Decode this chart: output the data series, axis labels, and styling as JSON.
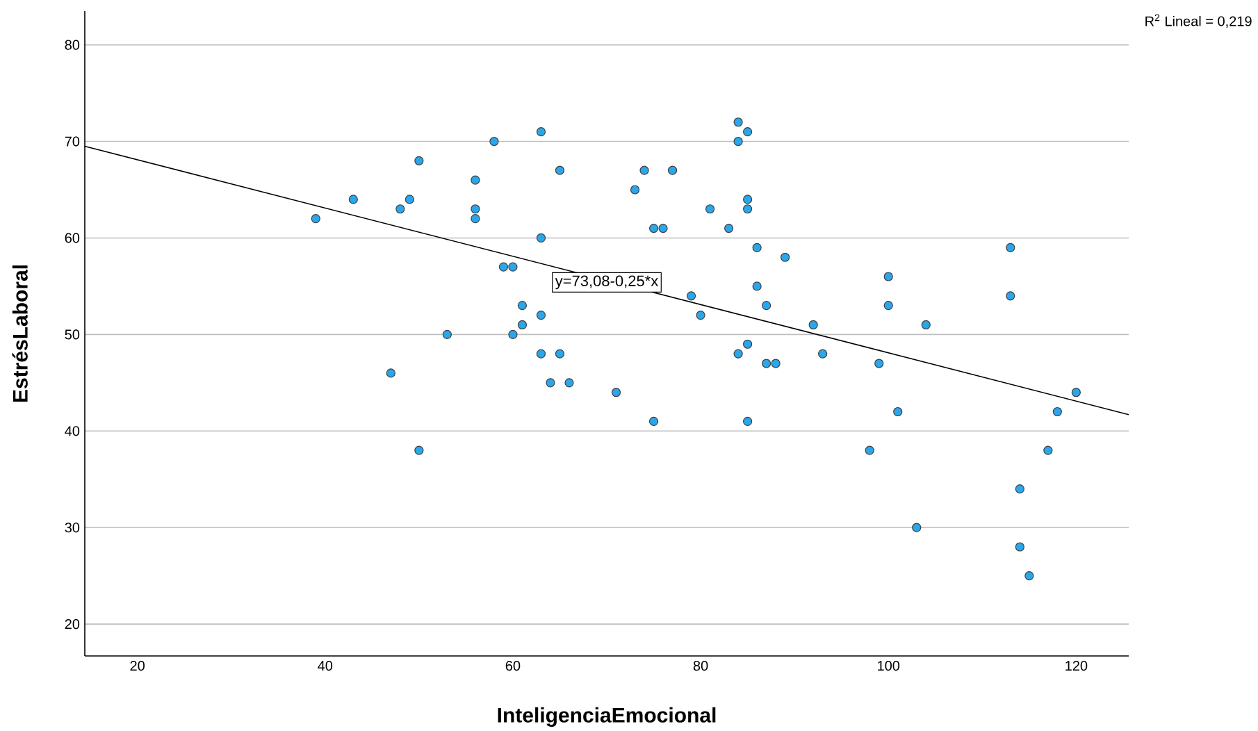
{
  "chart_data": {
    "type": "scatter",
    "xlabel": "InteligenciaEmocional",
    "ylabel": "EstrésLaboral",
    "xlim": [
      14.4,
      125.6
    ],
    "ylim": [
      16.7,
      83.5
    ],
    "xticks": [
      20,
      40,
      60,
      80,
      100,
      120
    ],
    "yticks": [
      20,
      30,
      40,
      50,
      60,
      70,
      80
    ],
    "grid": "y",
    "series": [
      {
        "marker": "circle",
        "color": "#2aa6ea",
        "x": [
          39,
          43,
          48,
          49,
          50,
          56,
          56,
          56,
          58,
          59,
          60,
          61,
          61,
          60,
          53,
          47,
          50,
          63,
          65,
          63,
          63,
          63,
          65,
          64,
          66,
          71,
          75,
          73,
          74,
          77,
          75,
          76,
          81,
          83,
          84,
          85,
          84,
          85,
          85,
          86,
          89,
          86,
          79,
          80,
          87,
          92,
          85,
          84,
          87,
          88,
          93,
          85,
          100,
          100,
          104,
          99,
          101,
          98,
          103,
          113,
          113,
          120,
          118,
          117,
          114,
          114,
          115
        ],
        "values": [
          62,
          64,
          63,
          64,
          68,
          66,
          63,
          62,
          70,
          57,
          57,
          53,
          51,
          50,
          50,
          46,
          38,
          71,
          67,
          60,
          52,
          48,
          48,
          45,
          45,
          44,
          41,
          65,
          67,
          67,
          61,
          61,
          63,
          61,
          72,
          71,
          70,
          64,
          63,
          59,
          58,
          55,
          54,
          52,
          53,
          51,
          49,
          48,
          47,
          47,
          48,
          41,
          56,
          53,
          51,
          47,
          42,
          38,
          30,
          59,
          54,
          44,
          42,
          38,
          34,
          28,
          25
        ]
      },
      {
        "type": "line",
        "marker": "none",
        "color": "#000000",
        "x": [
          14.4,
          125.6
        ],
        "values": [
          69.5,
          41.7
        ]
      }
    ],
    "annotations": [
      "R$^{2}$ Lineal = 0,219",
      {
        "text": "y=73,08-0,25*x",
        "x": 70,
        "y": 55.4
      }
    ]
  }
}
